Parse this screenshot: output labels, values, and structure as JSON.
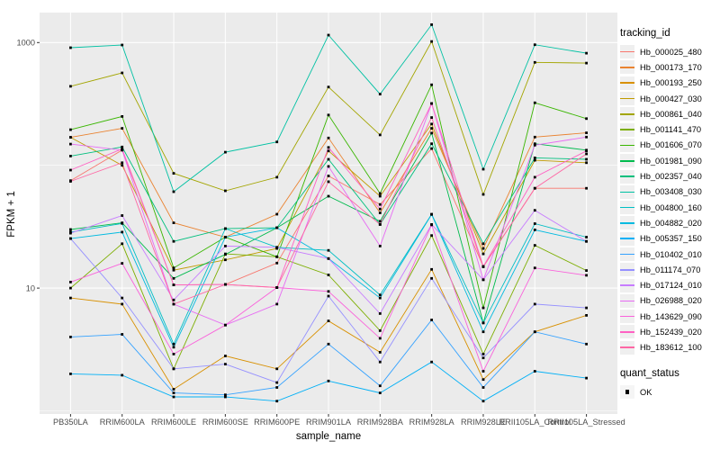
{
  "chart_data": {
    "type": "line",
    "title": "",
    "xlabel": "sample_name",
    "ylabel": "FPKM + 1",
    "yscale": "log10",
    "grid": "on",
    "legend_position": "right",
    "ylim": [
      0.94,
      1760
    ],
    "y_ticks": [
      {
        "value": 10,
        "label": "10"
      },
      {
        "value": 1000,
        "label": "1000"
      }
    ],
    "y_minor_gridlines": [
      1,
      100
    ],
    "categories": [
      "PB350LA",
      "RRIM600LA",
      "RRIM600LE",
      "RRIM600SE",
      "RRIM600PE",
      "RRIM901LA",
      "RRIM928BA",
      "RRIM928LA",
      "RRIM928LE",
      "RRII105LA_Control",
      "RRII105LA_Stressed"
    ],
    "legend_title": "tracking_id",
    "series": [
      {
        "name": "Hb_000025_480",
        "color": "#F8766D",
        "values": [
          75,
          133,
          10.6,
          10.7,
          16,
          82,
          48,
          137,
          15,
          65,
          65
        ]
      },
      {
        "name": "Hb_000173_170",
        "color": "#EA8331",
        "values": [
          169,
          200,
          34,
          26,
          40,
          167,
          41,
          200,
          21,
          170,
          184
        ]
      },
      {
        "name": "Hb_000193_250",
        "color": "#D89000",
        "values": [
          8.3,
          7.4,
          1.5,
          2.8,
          2.2,
          5.4,
          3.0,
          14.2,
          1.8,
          4.4,
          6.0
        ]
      },
      {
        "name": "Hb_000427_030",
        "color": "#C09B00",
        "values": [
          169,
          100,
          14,
          17,
          21,
          131,
          56,
          217,
          19,
          110,
          105
        ]
      },
      {
        "name": "Hb_000861_040",
        "color": "#A3A500",
        "values": [
          440,
          566,
          86,
          62,
          80,
          434,
          177,
          1020,
          58,
          690,
          680
        ]
      },
      {
        "name": "Hb_001141_470",
        "color": "#7CAE00",
        "values": [
          10,
          23,
          2.2,
          19,
          18,
          12.8,
          4.5,
          26.8,
          2.9,
          22.3,
          13.9
        ]
      },
      {
        "name": "Hb_001606_070",
        "color": "#39B600",
        "values": [
          195,
          250,
          14.6,
          26,
          18,
          257,
          59,
          453,
          6.9,
          323,
          240
        ]
      },
      {
        "name": "Hb_001981_090",
        "color": "#00BB4E",
        "values": [
          30,
          34,
          12,
          18.8,
          31,
          56,
          35,
          183,
          5.2,
          150,
          133
        ]
      },
      {
        "name": "Hb_002357_040",
        "color": "#00BF7D",
        "values": [
          119,
          141,
          24,
          30.5,
          31,
          112,
          33,
          150,
          23,
          115,
          112
        ]
      },
      {
        "name": "Hb_003408_030",
        "color": "#00C1A3",
        "values": [
          908,
          955,
          61,
          128,
          155,
          1150,
          380,
          1400,
          93,
          960,
          820
        ]
      },
      {
        "name": "Hb_004800_160",
        "color": "#00BFC4",
        "values": [
          28.6,
          33.6,
          3.5,
          30.5,
          21.5,
          20.3,
          8.8,
          40,
          5.2,
          33.5,
          26
        ]
      },
      {
        "name": "Hb_004882_020",
        "color": "#00BAE0",
        "values": [
          25.3,
          28.6,
          3.3,
          26,
          31,
          17.4,
          8.3,
          39.8,
          4.4,
          29.8,
          24
        ]
      },
      {
        "name": "Hb_005357_150",
        "color": "#00B0F6",
        "values": [
          2.0,
          1.95,
          1.3,
          1.3,
          1.2,
          1.75,
          1.4,
          2.5,
          1.2,
          2.1,
          1.85
        ]
      },
      {
        "name": "Hb_010402_010",
        "color": "#35A2FF",
        "values": [
          4.0,
          4.2,
          1.4,
          1.35,
          1.55,
          3.5,
          1.6,
          5.5,
          1.55,
          4.4,
          3.5
        ]
      },
      {
        "name": "Hb_011174_070",
        "color": "#9590FF",
        "values": [
          25.3,
          8.3,
          2.2,
          2.4,
          1.7,
          8.6,
          2.5,
          12.0,
          2.7,
          7.4,
          6.9
        ]
      },
      {
        "name": "Hb_017124_010",
        "color": "#C77CFF",
        "values": [
          28,
          39,
          8,
          22,
          21.5,
          17.4,
          6.2,
          33,
          11.7,
          43,
          24
        ]
      },
      {
        "name": "Hb_026988_020",
        "color": "#E76BF3",
        "values": [
          149,
          133,
          7.4,
          5.0,
          7.4,
          98,
          22,
          319,
          11.7,
          146,
          170
        ]
      },
      {
        "name": "Hb_143629_090",
        "color": "#FA62DB",
        "values": [
          11.2,
          15.9,
          2.9,
          5.0,
          10.1,
          9.4,
          3.9,
          32.7,
          2.1,
          14.6,
          12.7
        ]
      },
      {
        "name": "Hb_152439_020",
        "color": "#FF61C3",
        "values": [
          91.5,
          136,
          10.6,
          10.7,
          10.1,
          140,
          44,
          319,
          15,
          80,
          131
        ]
      },
      {
        "name": "Hb_183612_100",
        "color": "#FF67A4",
        "values": [
          74,
          105,
          7.4,
          10.7,
          10.1,
          73.5,
          33,
          245,
          14.9,
          65,
          124
        ]
      }
    ],
    "quant_legend": {
      "title": "quant_status",
      "items": [
        {
          "label": "OK",
          "shape": "filled-square",
          "color": "#000000"
        }
      ]
    }
  },
  "colors": {
    "panel_bg": "#EBEBEB",
    "gridline": "#FFFFFF",
    "axis_text": "#4D4D4D",
    "tick_mark": "#333333",
    "point": "#000000",
    "legend_key_bg": "#EFEFEF"
  }
}
